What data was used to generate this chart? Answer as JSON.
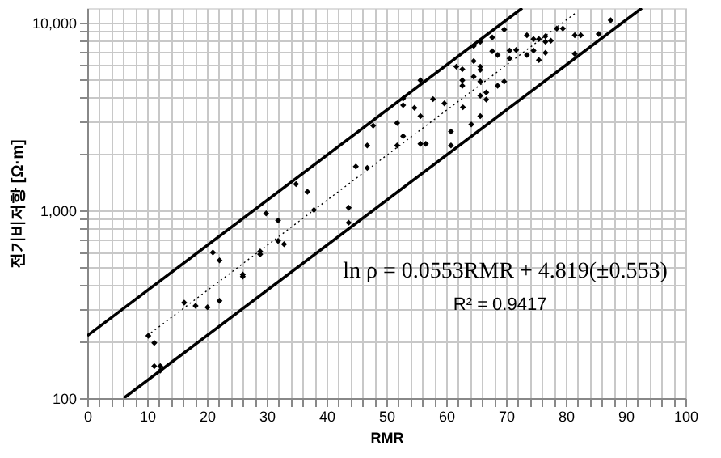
{
  "chart_data": {
    "type": "scatter",
    "xlabel": "RMR",
    "ylabel": "전기비저항 [Ω·m]",
    "xlim": [
      0,
      100
    ],
    "ylim": [
      100,
      12000
    ],
    "log": "y",
    "grid": true,
    "xticks": [
      0,
      {
        "value": 2,
        "label": null
      },
      {
        "value": 4,
        "label": null
      },
      {
        "value": 6,
        "label": null
      },
      {
        "value": 8,
        "label": null
      },
      10,
      {
        "value": 12,
        "label": null
      },
      {
        "value": 14,
        "label": null
      },
      {
        "value": 16,
        "label": null
      },
      {
        "value": 18,
        "label": null
      },
      20,
      {
        "value": 22,
        "label": null
      },
      {
        "value": 24,
        "label": null
      },
      {
        "value": 26,
        "label": null
      },
      {
        "value": 28,
        "label": null
      },
      30,
      {
        "value": 32,
        "label": null
      },
      {
        "value": 34,
        "label": null
      },
      {
        "value": 36,
        "label": null
      },
      {
        "value": 38,
        "label": null
      },
      40,
      {
        "value": 42,
        "label": null
      },
      {
        "value": 44,
        "label": null
      },
      {
        "value": 46,
        "label": null
      },
      {
        "value": 48,
        "label": null
      },
      50,
      {
        "value": 52,
        "label": null
      },
      {
        "value": 54,
        "label": null
      },
      {
        "value": 56,
        "label": null
      },
      {
        "value": 58,
        "label": null
      },
      60,
      {
        "value": 62,
        "label": null
      },
      {
        "value": 64,
        "label": null
      },
      {
        "value": 66,
        "label": null
      },
      {
        "value": 68,
        "label": null
      },
      70,
      {
        "value": 72,
        "label": null
      },
      {
        "value": 74,
        "label": null
      },
      {
        "value": 76,
        "label": null
      },
      {
        "value": 78,
        "label": null
      },
      80,
      {
        "value": 82,
        "label": null
      },
      {
        "value": 84,
        "label": null
      },
      {
        "value": 86,
        "label": null
      },
      {
        "value": 88,
        "label": null
      },
      90,
      {
        "value": 92,
        "label": null
      },
      {
        "value": 94,
        "label": null
      },
      {
        "value": 96,
        "label": null
      },
      {
        "value": 98,
        "label": null
      },
      100
    ],
    "yticks": [
      {
        "value": 100,
        "label": "100"
      },
      {
        "value": 200,
        "label": null
      },
      {
        "value": 300,
        "label": null
      },
      {
        "value": 400,
        "label": null
      },
      {
        "value": 500,
        "label": null
      },
      {
        "value": 600,
        "label": null
      },
      {
        "value": 700,
        "label": null
      },
      {
        "value": 800,
        "label": null
      },
      {
        "value": 900,
        "label": null
      },
      {
        "value": 1000,
        "label": "1,000"
      },
      {
        "value": 2000,
        "label": null
      },
      {
        "value": 3000,
        "label": null
      },
      {
        "value": 4000,
        "label": null
      },
      {
        "value": 5000,
        "label": null
      },
      {
        "value": 6000,
        "label": null
      },
      {
        "value": 7000,
        "label": null
      },
      {
        "value": 8000,
        "label": null
      },
      {
        "value": 9000,
        "label": null
      },
      {
        "value": 10000,
        "label": "10,000"
      }
    ],
    "annotations": [
      "ln ρ = 0.0553RMR + 4.819(±0.553)",
      "R² = 0.9417"
    ],
    "series": [
      {
        "marker": "diamond",
        "color": "#000000",
        "x": [
          10.2,
          11.2,
          11.2,
          12.2,
          12.2,
          16.2,
          18.1,
          20.1,
          21.0,
          22.1,
          22.1,
          26.0,
          26.0,
          28.9,
          28.9,
          29.9,
          31.9,
          31.9,
          32.9,
          34.9,
          36.8,
          37.9,
          43.7,
          43.7,
          44.9,
          46.8,
          46.8,
          47.8,
          51.8,
          51.8,
          52.8,
          52.8,
          52.8,
          54.7,
          55.7,
          55.7,
          55.7,
          56.6,
          57.8,
          59.7,
          60.8,
          60.8,
          61.7,
          62.7,
          62.8,
          64.6,
          64.6,
          62.7,
          62.7,
          64.2,
          64.6,
          65.7,
          65.7,
          65.7,
          65.7,
          65.7,
          65.7,
          66.7,
          66.7,
          67.7,
          67.7,
          68.6,
          68.6,
          69.7,
          69.7,
          70.6,
          70.6,
          71.7,
          73.5,
          73.5,
          74.6,
          75.5,
          76.6,
          76.6,
          74.6,
          75.5,
          76.6,
          77.5,
          78.5,
          79.5,
          81.5,
          82.5,
          81.5,
          85.5,
          87.5
        ],
        "values": [
          215,
          197,
          148,
          148,
          140,
          323,
          310,
          305,
          597,
          543,
          330,
          456,
          445,
          605,
          585,
          966,
          885,
          689,
          662,
          1384,
          1259,
          1007,
          1035,
          862,
          1718,
          1687,
          2223,
          2838,
          2930,
          2223,
          3954,
          3648,
          2494,
          3524,
          3184,
          4943,
          2270,
          2270,
          3929,
          3724,
          2636,
          2223,
          5848,
          5662,
          3550,
          7534,
          6264,
          4943,
          4624,
          2877,
          5176,
          7943,
          5848,
          5623,
          4875,
          4093,
          3184,
          4264,
          3902,
          8375,
          7079,
          6745,
          4624,
          9226,
          4875,
          6471,
          7129,
          7177,
          8610,
          6745,
          8204,
          8204,
          8492,
          7943,
          7129,
          6339,
          6930,
          8051,
          9333,
          9333,
          8610,
          8610,
          6839,
          8730,
          10330
        ]
      },
      {
        "type": "line",
        "color": "#000000",
        "line_style": "dotted",
        "x": [
          10,
          81.6
        ],
        "values": [
          215,
          11280
        ]
      },
      {
        "type": "line",
        "color": "#000000",
        "line_style": "solid",
        "x": [
          0,
          72.7
        ],
        "values": [
          215,
          12000
        ]
      },
      {
        "type": "line",
        "color": "#000000",
        "line_style": "solid",
        "x": [
          6.1,
          92.7
        ],
        "values": [
          100,
          12000
        ]
      }
    ]
  }
}
